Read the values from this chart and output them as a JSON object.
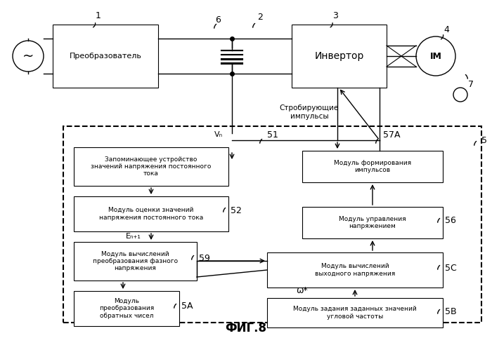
{
  "title": "ФИГ.8",
  "bg_color": "#ffffff",
  "line_color": "#000000",
  "box_fill": "#ffffff",
  "box_edge": "#000000",
  "labels": {
    "converter": "Преобразователь",
    "inverter": "Инвертор",
    "im": "IM",
    "strob": "Стробирующие\nимпульсы",
    "vn": "Vₙ",
    "b51": "51",
    "b57a": "57A",
    "b5": "5",
    "b52": "52",
    "b59": "59",
    "b5a": "5A",
    "b5b": "5B",
    "b5c": "5C",
    "b56": "56",
    "b6": "6",
    "b2": "2",
    "b1": "1",
    "b3": "3",
    "b4": "4",
    "b7": "7",
    "en1": "Eₙ₊₁",
    "omega": "ω*",
    "box_mem": "Запоминающее устройство\nзначений напряжения постоянного\nтока",
    "box_eval": "Модуль оценки значений\nнапряжения постоянного тока",
    "box_phase": "Модуль вычислений\nпреобразования фазного\nнапряжения",
    "box_inverse": "Модуль\nпреобразования\nобратных чисел",
    "box_impulse": "Модуль формирования\nимпульсов",
    "box_voltage_ctrl": "Модуль управления\nнапряжением",
    "box_output_volt": "Модуль вычислений\nвыходного напряжения",
    "box_angular": "Модуль задания заданных значений\nугловой частоты"
  }
}
